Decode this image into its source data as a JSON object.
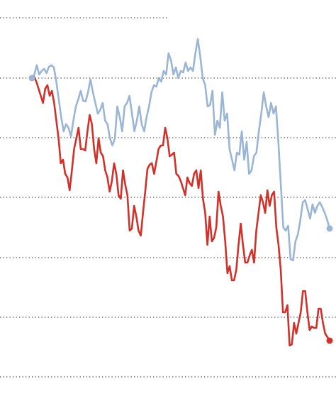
{
  "chart_data": {
    "type": "line",
    "ylim": [
      -34,
      531
    ],
    "yticks": [
      0,
      84,
      168,
      253,
      337,
      421,
      506
    ],
    "grid": true,
    "series": [
      {
        "name": null,
        "color": "#9ab5d5",
        "values": [
          421,
          426,
          439,
          426,
          431,
          434,
          428,
          437,
          439,
          436,
          416,
          391,
          366,
          346,
          356,
          351,
          339,
          361,
          381,
          391,
          403,
          389,
          388,
          401,
          419,
          401,
          386,
          371,
          376,
          386,
          361,
          356,
          336,
          326,
          336,
          381,
          366,
          346,
          381,
          386,
          396,
          371,
          346,
          361,
          381,
          356,
          346,
          366,
          381,
          401,
          411,
          409,
          421,
          416,
          431,
          426,
          456,
          446,
          426,
          436,
          421,
          431,
          429,
          443,
          431,
          436,
          431,
          456,
          476,
          451,
          421,
          411,
          381,
          383,
          403,
          341,
          361,
          351,
          401,
          361,
          371,
          321,
          306,
          291,
          316,
          313,
          346,
          306,
          331,
          286,
          291,
          311,
          316,
          346,
          371,
          401,
          381,
          366,
          386,
          371,
          381,
          331,
          271,
          211,
          206,
          213,
          166,
          164,
          191,
          201,
          221,
          246,
          249,
          236,
          223,
          243,
          231,
          241,
          246,
          239,
          231,
          221,
          209
        ]
      },
      {
        "name": null,
        "color": "#d1312a",
        "values": [
          421,
          423,
          416,
          406,
          396,
          386,
          406,
          411,
          396,
          403,
          386,
          361,
          336,
          301,
          306,
          286,
          281,
          263,
          291,
          321,
          336,
          351,
          321,
          321,
          319,
          346,
          369,
          356,
          321,
          301,
          336,
          316,
          311,
          291,
          281,
          261,
          276,
          301,
          286,
          256,
          251,
          291,
          271,
          256,
          206,
          209,
          241,
          226,
          206,
          199,
          231,
          261,
          293,
          299,
          301,
          286,
          303,
          321,
          326,
          326,
          351,
          336,
          311,
          313,
          316,
          286,
          283,
          276,
          266,
          256,
          281,
          273,
          269,
          286,
          291,
          266,
          291,
          251,
          231,
          186,
          226,
          191,
          196,
          211,
          261,
          241,
          226,
          191,
          146,
          156,
          136,
          136,
          151,
          186,
          216,
          186,
          161,
          161,
          171,
          179,
          161,
          206,
          231,
          256,
          246,
          231,
          263,
          241,
          256,
          261,
          211,
          186,
          151,
          91,
          91,
          101,
          44,
          46,
          76,
          61,
          76,
          91,
          121,
          121,
          91,
          66,
          71,
          69,
          69,
          96,
          96,
          76,
          61,
          56,
          51
        ]
      }
    ]
  }
}
